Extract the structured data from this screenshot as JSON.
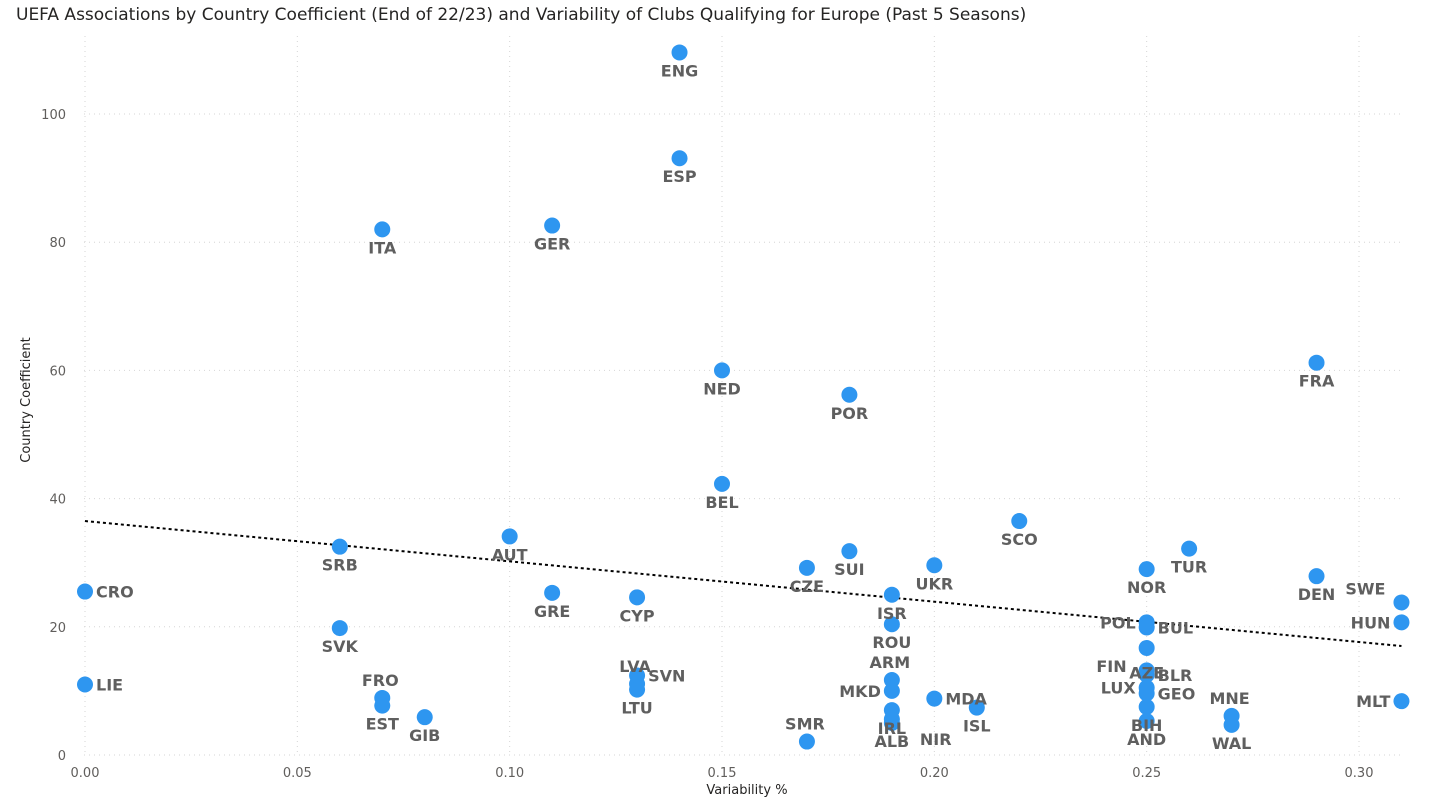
{
  "title": "UEFA Associations by Country Coefficient (End of 22/23) and Variability of Clubs Qualifying for Europe (Past 5 Seasons)",
  "chart_data": {
    "type": "scatter",
    "title": "UEFA Associations by Country Coefficient (End of 22/23) and Variability of Clubs Qualifying for Europe (Past 5 Seasons)",
    "xlabel": "Variability %",
    "ylabel": "Country Coefficient",
    "xlim": [
      -0.002,
      0.312
    ],
    "ylim": [
      0,
      110
    ],
    "xticks": [
      "0.00",
      "0.05",
      "0.10",
      "0.15",
      "0.20",
      "0.25",
      "0.30"
    ],
    "xtick_values": [
      0,
      0.05,
      0.1,
      0.15,
      0.2,
      0.25,
      0.3
    ],
    "yticks": [
      "0",
      "20",
      "40",
      "60",
      "80",
      "100"
    ],
    "ytick_values": [
      0,
      20,
      40,
      60,
      80,
      100
    ],
    "grid": true,
    "marker_color": "#2e96f0",
    "label_color": "#5f5f5f",
    "trend_line": {
      "style": "dotted",
      "color": "#000000",
      "from": [
        0,
        36.5
      ],
      "to": [
        0.31,
        17.0
      ]
    },
    "points": [
      {
        "label": "ENG",
        "x": 0.14,
        "y": 109.6,
        "lpos": "below"
      },
      {
        "label": "ESP",
        "x": 0.14,
        "y": 93.1,
        "lpos": "below"
      },
      {
        "label": "ITA",
        "x": 0.07,
        "y": 82.0,
        "lpos": "below"
      },
      {
        "label": "GER",
        "x": 0.11,
        "y": 82.6,
        "lpos": "below"
      },
      {
        "label": "NED",
        "x": 0.15,
        "y": 60.0,
        "lpos": "below"
      },
      {
        "label": "POR",
        "x": 0.18,
        "y": 56.2,
        "lpos": "below"
      },
      {
        "label": "FRA",
        "x": 0.29,
        "y": 61.2,
        "lpos": "below"
      },
      {
        "label": "BEL",
        "x": 0.15,
        "y": 42.3,
        "lpos": "below"
      },
      {
        "label": "SCO",
        "x": 0.22,
        "y": 36.5,
        "lpos": "below"
      },
      {
        "label": "AUT",
        "x": 0.1,
        "y": 34.1,
        "lpos": "below"
      },
      {
        "label": "SRB",
        "x": 0.06,
        "y": 32.5,
        "lpos": "below"
      },
      {
        "label": "TUR",
        "x": 0.26,
        "y": 32.2,
        "lpos": "below"
      },
      {
        "label": "SUI",
        "x": 0.18,
        "y": 31.8,
        "lpos": "below"
      },
      {
        "label": "UKR",
        "x": 0.2,
        "y": 29.6,
        "lpos": "below"
      },
      {
        "label": "CZE",
        "x": 0.17,
        "y": 29.2,
        "lpos": "below"
      },
      {
        "label": "NOR",
        "x": 0.25,
        "y": 29.0,
        "lpos": "below"
      },
      {
        "label": "DEN",
        "x": 0.29,
        "y": 27.9,
        "lpos": "below"
      },
      {
        "label": "CRO",
        "x": 0.0,
        "y": 25.5,
        "lpos": "right"
      },
      {
        "label": "GRE",
        "x": 0.11,
        "y": 25.3,
        "lpos": "below"
      },
      {
        "label": "ISR",
        "x": 0.19,
        "y": 25.0,
        "lpos": "below"
      },
      {
        "label": "CYP",
        "x": 0.13,
        "y": 24.6,
        "lpos": "below"
      },
      {
        "label": "SWE",
        "x": 0.31,
        "y": 23.8,
        "lpos": "leftup"
      },
      {
        "label": "HUN",
        "x": 0.31,
        "y": 20.7,
        "lpos": "left"
      },
      {
        "label": "POL",
        "x": 0.25,
        "y": 20.7,
        "lpos": "left"
      },
      {
        "label": "BUL",
        "x": 0.25,
        "y": 19.9,
        "lpos": "right"
      },
      {
        "label": "ROU",
        "x": 0.19,
        "y": 20.4,
        "lpos": "below"
      },
      {
        "label": "SVK",
        "x": 0.06,
        "y": 19.8,
        "lpos": "below"
      },
      {
        "label": "FIN",
        "x": 0.25,
        "y": 16.7,
        "lpos": "leftdown"
      },
      {
        "label": "AZE",
        "x": 0.25,
        "y": 13.2,
        "lpos": "upright"
      },
      {
        "label": "BLR",
        "x": 0.25,
        "y": 12.5,
        "lpos": "right"
      },
      {
        "label": "SVN",
        "x": 0.13,
        "y": 12.4,
        "lpos": "right"
      },
      {
        "label": "LVA",
        "x": 0.13,
        "y": 11.1,
        "lpos": "up"
      },
      {
        "label": "ARM",
        "x": 0.19,
        "y": 11.7,
        "lpos": "up"
      },
      {
        "label": "LIE",
        "x": 0.0,
        "y": 11.0,
        "lpos": "right"
      },
      {
        "label": "LUX",
        "x": 0.25,
        "y": 10.5,
        "lpos": "left"
      },
      {
        "label": "LTU",
        "x": 0.13,
        "y": 10.2,
        "lpos": "below"
      },
      {
        "label": "MKD",
        "x": 0.19,
        "y": 10.0,
        "lpos": "left"
      },
      {
        "label": "GEO",
        "x": 0.25,
        "y": 9.6,
        "lpos": "right"
      },
      {
        "label": "FRO",
        "x": 0.07,
        "y": 8.9,
        "lpos": "up"
      },
      {
        "label": "MDA",
        "x": 0.2,
        "y": 8.8,
        "lpos": "right"
      },
      {
        "label": "MLT",
        "x": 0.31,
        "y": 8.4,
        "lpos": "left"
      },
      {
        "label": "EST",
        "x": 0.07,
        "y": 7.7,
        "lpos": "below"
      },
      {
        "label": "ISL",
        "x": 0.21,
        "y": 7.4,
        "lpos": "below"
      },
      {
        "label": "BIH",
        "x": 0.25,
        "y": 7.5,
        "lpos": "below"
      },
      {
        "label": "IRL",
        "x": 0.19,
        "y": 7.0,
        "lpos": "below"
      },
      {
        "label": "MNE",
        "x": 0.27,
        "y": 6.1,
        "lpos": "up"
      },
      {
        "label": "GIB",
        "x": 0.08,
        "y": 5.9,
        "lpos": "below"
      },
      {
        "label": "NIR",
        "x": 0.19,
        "y": 5.6,
        "lpos": "rightdown"
      },
      {
        "label": "AND",
        "x": 0.25,
        "y": 5.3,
        "lpos": "below"
      },
      {
        "label": "ALB",
        "x": 0.19,
        "y": 5.0,
        "lpos": "below"
      },
      {
        "label": "WAL",
        "x": 0.27,
        "y": 4.7,
        "lpos": "below"
      },
      {
        "label": "SMR",
        "x": 0.17,
        "y": 2.1,
        "lpos": "up"
      }
    ]
  }
}
